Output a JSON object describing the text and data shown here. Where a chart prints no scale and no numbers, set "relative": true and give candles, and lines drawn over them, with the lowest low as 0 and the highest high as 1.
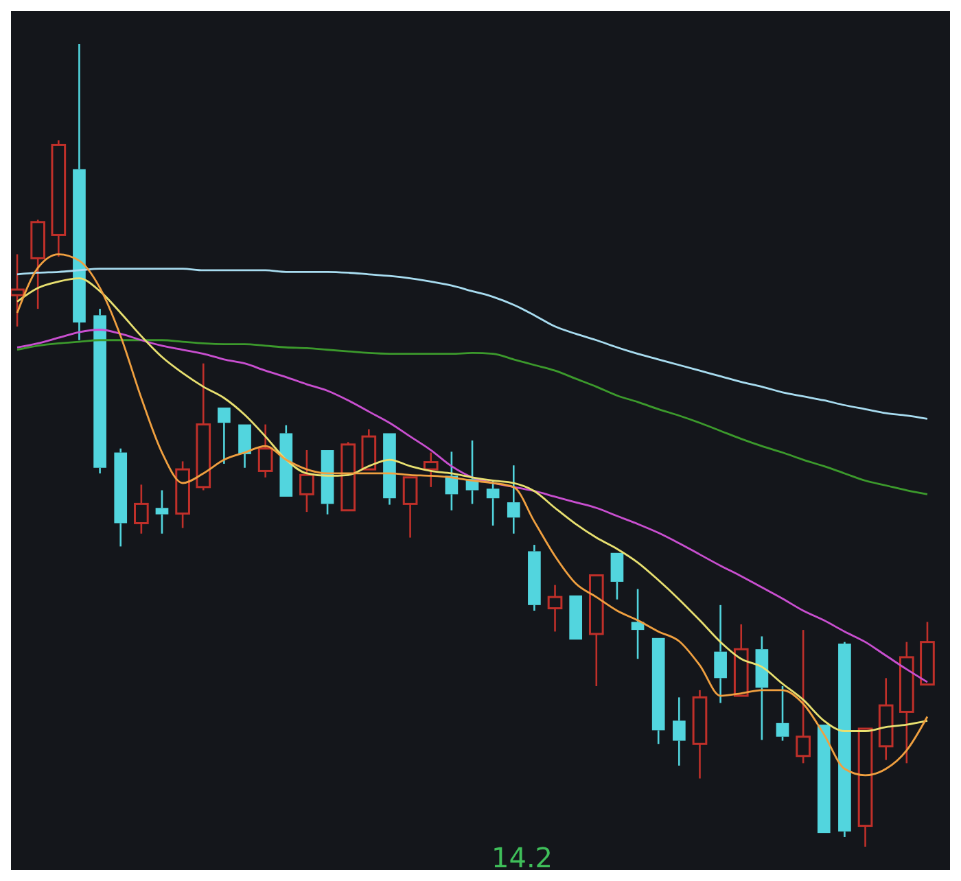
{
  "chart_data": {
    "type": "candlestick",
    "relative": true,
    "categories": [
      null,
      null,
      null,
      null,
      null,
      null,
      null,
      null,
      null,
      null,
      null,
      null,
      null,
      null,
      null,
      null,
      null,
      null,
      null,
      null,
      null,
      null,
      null,
      null,
      null,
      null,
      null,
      null,
      null,
      null,
      null,
      null,
      null,
      null,
      null,
      null,
      null,
      null,
      null,
      null,
      null,
      null,
      null,
      null,
      null
    ],
    "ohlc": [
      [
        0.687,
        0.738,
        0.648,
        0.694
      ],
      [
        0.733,
        0.781,
        0.67,
        0.778
      ],
      [
        0.762,
        0.88,
        0.735,
        0.874
      ],
      [
        0.844,
        1,
        0.631,
        0.653
      ],
      [
        0.662,
        0.67,
        0.465,
        0.472
      ],
      [
        0.491,
        0.496,
        0.374,
        0.403
      ],
      [
        0.403,
        0.451,
        0.39,
        0.427
      ],
      [
        0.422,
        0.444,
        0.39,
        0.414
      ],
      [
        0.415,
        0.48,
        0.397,
        0.47
      ],
      [
        0.448,
        0.602,
        0.444,
        0.526
      ],
      [
        0.547,
        0.547,
        0.477,
        0.528
      ],
      [
        0.526,
        0.526,
        0.472,
        0.489
      ],
      [
        0.468,
        0.526,
        0.46,
        0.496
      ],
      [
        0.515,
        0.525,
        0.436,
        0.436
      ],
      [
        0.439,
        0.494,
        0.417,
        0.463
      ],
      [
        0.494,
        0.494,
        0.414,
        0.427
      ],
      [
        0.419,
        0.504,
        0.419,
        0.501
      ],
      [
        0.47,
        0.52,
        0.47,
        0.511
      ],
      [
        0.515,
        0.515,
        0.426,
        0.434
      ],
      [
        0.427,
        0.46,
        0.385,
        0.46
      ],
      [
        0.47,
        0.491,
        0.448,
        0.479
      ],
      [
        0.462,
        0.492,
        0.419,
        0.439
      ],
      [
        0.458,
        0.506,
        0.427,
        0.444
      ],
      [
        0.446,
        0.456,
        0.4,
        0.434
      ],
      [
        0.429,
        0.475,
        0.39,
        0.41
      ],
      [
        0.368,
        0.376,
        0.294,
        0.301
      ],
      [
        0.297,
        0.326,
        0.268,
        0.311
      ],
      [
        0.313,
        0.313,
        0.258,
        0.258
      ],
      [
        0.265,
        0.338,
        0.2,
        0.338
      ],
      [
        0.366,
        0.366,
        0.308,
        0.33
      ],
      [
        0.28,
        0.321,
        0.234,
        0.27
      ],
      [
        0.26,
        0.26,
        0.128,
        0.145
      ],
      [
        0.157,
        0.186,
        0.101,
        0.132
      ],
      [
        0.128,
        0.195,
        0.085,
        0.186
      ],
      [
        0.243,
        0.301,
        0.179,
        0.21
      ],
      [
        0.188,
        0.277,
        0.188,
        0.246
      ],
      [
        0.246,
        0.262,
        0.133,
        0.198
      ],
      [
        0.154,
        0.2,
        0.132,
        0.137
      ],
      [
        0.113,
        0.27,
        0.104,
        0.137
      ],
      [
        0.152,
        0.152,
        0.017,
        0.017
      ],
      [
        0.253,
        0.255,
        0.012,
        0.019
      ],
      [
        0.026,
        0.147,
        0,
        0.147
      ],
      [
        0.125,
        0.21,
        0.108,
        0.176
      ],
      [
        0.168,
        0.255,
        0.104,
        0.236
      ],
      [
        0.202,
        0.28,
        0.202,
        0.255
      ]
    ],
    "colors": [
      "#c0302a",
      "#c0302a",
      "#c0302a",
      "#52d5de",
      "#52d5de",
      "#52d5de",
      "#c0302a",
      "#52d5de",
      "#c0302a",
      "#c0302a",
      "#52d5de",
      "#52d5de",
      "#c0302a",
      "#52d5de",
      "#c0302a",
      "#52d5de",
      "#c0302a",
      "#c0302a",
      "#52d5de",
      "#c0302a",
      "#c0302a",
      "#52d5de",
      "#52d5de",
      "#52d5de",
      "#52d5de",
      "#52d5de",
      "#c0302a",
      "#52d5de",
      "#c0302a",
      "#52d5de",
      "#52d5de",
      "#52d5de",
      "#52d5de",
      "#c0302a",
      "#52d5de",
      "#c0302a",
      "#52d5de",
      "#52d5de",
      "#c0302a",
      "#52d5de",
      "#52d5de",
      "#c0302a",
      "#c0302a",
      "#c0302a",
      "#c0302a"
    ],
    "series": [
      {
        "type": "line",
        "color": "#a8dcf0",
        "values": [
          0.713,
          0.715,
          0.716,
          0.718,
          0.72,
          0.72,
          0.72,
          0.72,
          0.72,
          0.718,
          0.718,
          0.718,
          0.718,
          0.716,
          0.716,
          0.716,
          0.715,
          0.713,
          0.711,
          0.708,
          0.704,
          0.699,
          0.692,
          0.685,
          0.675,
          0.662,
          0.648,
          0.639,
          0.631,
          0.622,
          0.614,
          0.607,
          0.6,
          0.593,
          0.586,
          0.579,
          0.573,
          0.566,
          0.561,
          0.556,
          0.55,
          0.545,
          0.54,
          0.537,
          0.533
        ]
      },
      {
        "type": "line",
        "color": "#3c9a2c",
        "values": [
          0.619,
          0.624,
          0.627,
          0.629,
          0.631,
          0.631,
          0.631,
          0.631,
          0.629,
          0.627,
          0.626,
          0.626,
          0.624,
          0.622,
          0.621,
          0.619,
          0.617,
          0.615,
          0.614,
          0.614,
          0.614,
          0.614,
          0.615,
          0.614,
          0.607,
          0.6,
          0.593,
          0.583,
          0.573,
          0.562,
          0.554,
          0.545,
          0.537,
          0.528,
          0.518,
          0.508,
          0.499,
          0.491,
          0.482,
          0.474,
          0.465,
          0.456,
          0.45,
          0.444,
          0.439
        ]
      },
      {
        "type": "line",
        "color": "#c94fd0",
        "values": [
          0.622,
          0.627,
          0.634,
          0.641,
          0.644,
          0.639,
          0.631,
          0.624,
          0.619,
          0.614,
          0.607,
          0.602,
          0.593,
          0.585,
          0.576,
          0.568,
          0.556,
          0.542,
          0.528,
          0.511,
          0.494,
          0.474,
          0.46,
          0.453,
          0.448,
          0.443,
          0.436,
          0.429,
          0.422,
          0.412,
          0.402,
          0.391,
          0.378,
          0.364,
          0.35,
          0.337,
          0.323,
          0.309,
          0.294,
          0.282,
          0.268,
          0.255,
          0.238,
          0.221,
          0.205
        ]
      },
      {
        "type": "line",
        "color": "#e8e070",
        "values": [
          0.679,
          0.696,
          0.704,
          0.708,
          0.692,
          0.665,
          0.636,
          0.61,
          0.59,
          0.573,
          0.559,
          0.538,
          0.511,
          0.482,
          0.465,
          0.462,
          0.463,
          0.474,
          0.482,
          0.474,
          0.468,
          0.465,
          0.46,
          0.456,
          0.453,
          0.443,
          0.422,
          0.402,
          0.385,
          0.371,
          0.354,
          0.332,
          0.308,
          0.282,
          0.255,
          0.234,
          0.224,
          0.203,
          0.183,
          0.157,
          0.144,
          0.144,
          0.149,
          0.152,
          0.157
        ]
      },
      {
        "type": "line",
        "color": "#f0a040",
        "values": [
          0.665,
          0.721,
          0.738,
          0.73,
          0.696,
          0.636,
          0.559,
          0.491,
          0.453,
          0.465,
          0.482,
          0.491,
          0.499,
          0.482,
          0.47,
          0.465,
          0.465,
          0.465,
          0.465,
          0.463,
          0.462,
          0.46,
          0.456,
          0.453,
          0.448,
          0.405,
          0.362,
          0.328,
          0.311,
          0.294,
          0.282,
          0.268,
          0.256,
          0.226,
          0.188,
          0.191,
          0.195,
          0.195,
          0.178,
          0.14,
          0.097,
          0.089,
          0.097,
          0.12,
          0.162
        ]
      }
    ],
    "annotations": [
      "14.2"
    ]
  }
}
